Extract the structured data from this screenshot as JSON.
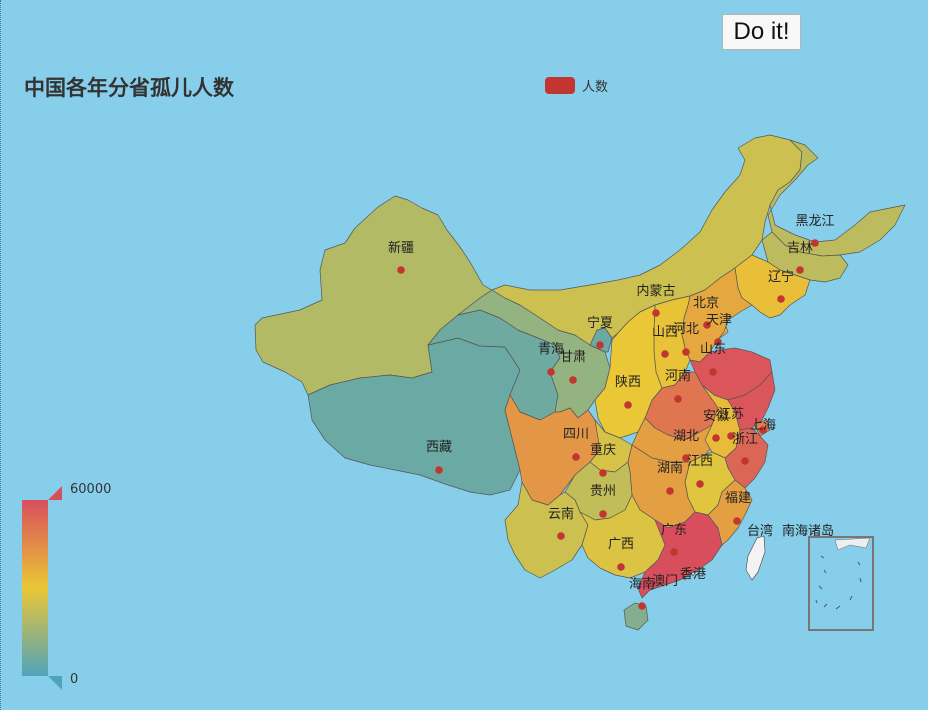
{
  "toolbar": {
    "button_label": "Do it!"
  },
  "chart_data": {
    "type": "map",
    "map": "china",
    "title": "中国各年分省孤儿人数",
    "legend": {
      "entries": [
        "人数"
      ],
      "placement": "top-center"
    },
    "visual_map": {
      "min": 0,
      "max": 60000,
      "max_label": "60000",
      "min_label": "0",
      "colors": [
        "#50a3ba",
        "#eac736",
        "#d94e5d"
      ]
    },
    "series": [
      {
        "name": "人数",
        "regions": [
          {
            "name": "新疆",
            "value": 19000
          },
          {
            "name": "西藏",
            "value": 5000
          },
          {
            "name": "青海",
            "value": 6000
          },
          {
            "name": "甘肃",
            "value": 13000
          },
          {
            "name": "宁夏",
            "value": 5000
          },
          {
            "name": "内蒙古",
            "value": 24000
          },
          {
            "name": "黑龙江",
            "value": 21000
          },
          {
            "name": "吉林",
            "value": 21000
          },
          {
            "name": "辽宁",
            "value": 32000
          },
          {
            "name": "北京",
            "value": 36000
          },
          {
            "name": "天津",
            "value": 35000
          },
          {
            "name": "河北",
            "value": 38000
          },
          {
            "name": "山西",
            "value": 31000
          },
          {
            "name": "山东",
            "value": 58000
          },
          {
            "name": "河南",
            "value": 50000
          },
          {
            "name": "陕西",
            "value": 30000
          },
          {
            "name": "四川",
            "value": 42000
          },
          {
            "name": "重庆",
            "value": 26000
          },
          {
            "name": "湖北",
            "value": 40000
          },
          {
            "name": "安徽",
            "value": 33000
          },
          {
            "name": "江苏",
            "value": 58000
          },
          {
            "name": "上海",
            "value": 48000
          },
          {
            "name": "浙江",
            "value": 54000
          },
          {
            "name": "江西",
            "value": 28000
          },
          {
            "name": "湖南",
            "value": 40000
          },
          {
            "name": "贵州",
            "value": 22000
          },
          {
            "name": "云南",
            "value": 24000
          },
          {
            "name": "广西",
            "value": 27000
          },
          {
            "name": "广东",
            "value": 60000
          },
          {
            "name": "福建",
            "value": 40000
          },
          {
            "name": "海南",
            "value": 10000
          },
          {
            "name": "台湾",
            "value": null
          },
          {
            "name": "香港",
            "value": null
          },
          {
            "name": "澳门",
            "value": null
          },
          {
            "name": "南海诸岛",
            "value": null
          }
        ]
      }
    ]
  }
}
